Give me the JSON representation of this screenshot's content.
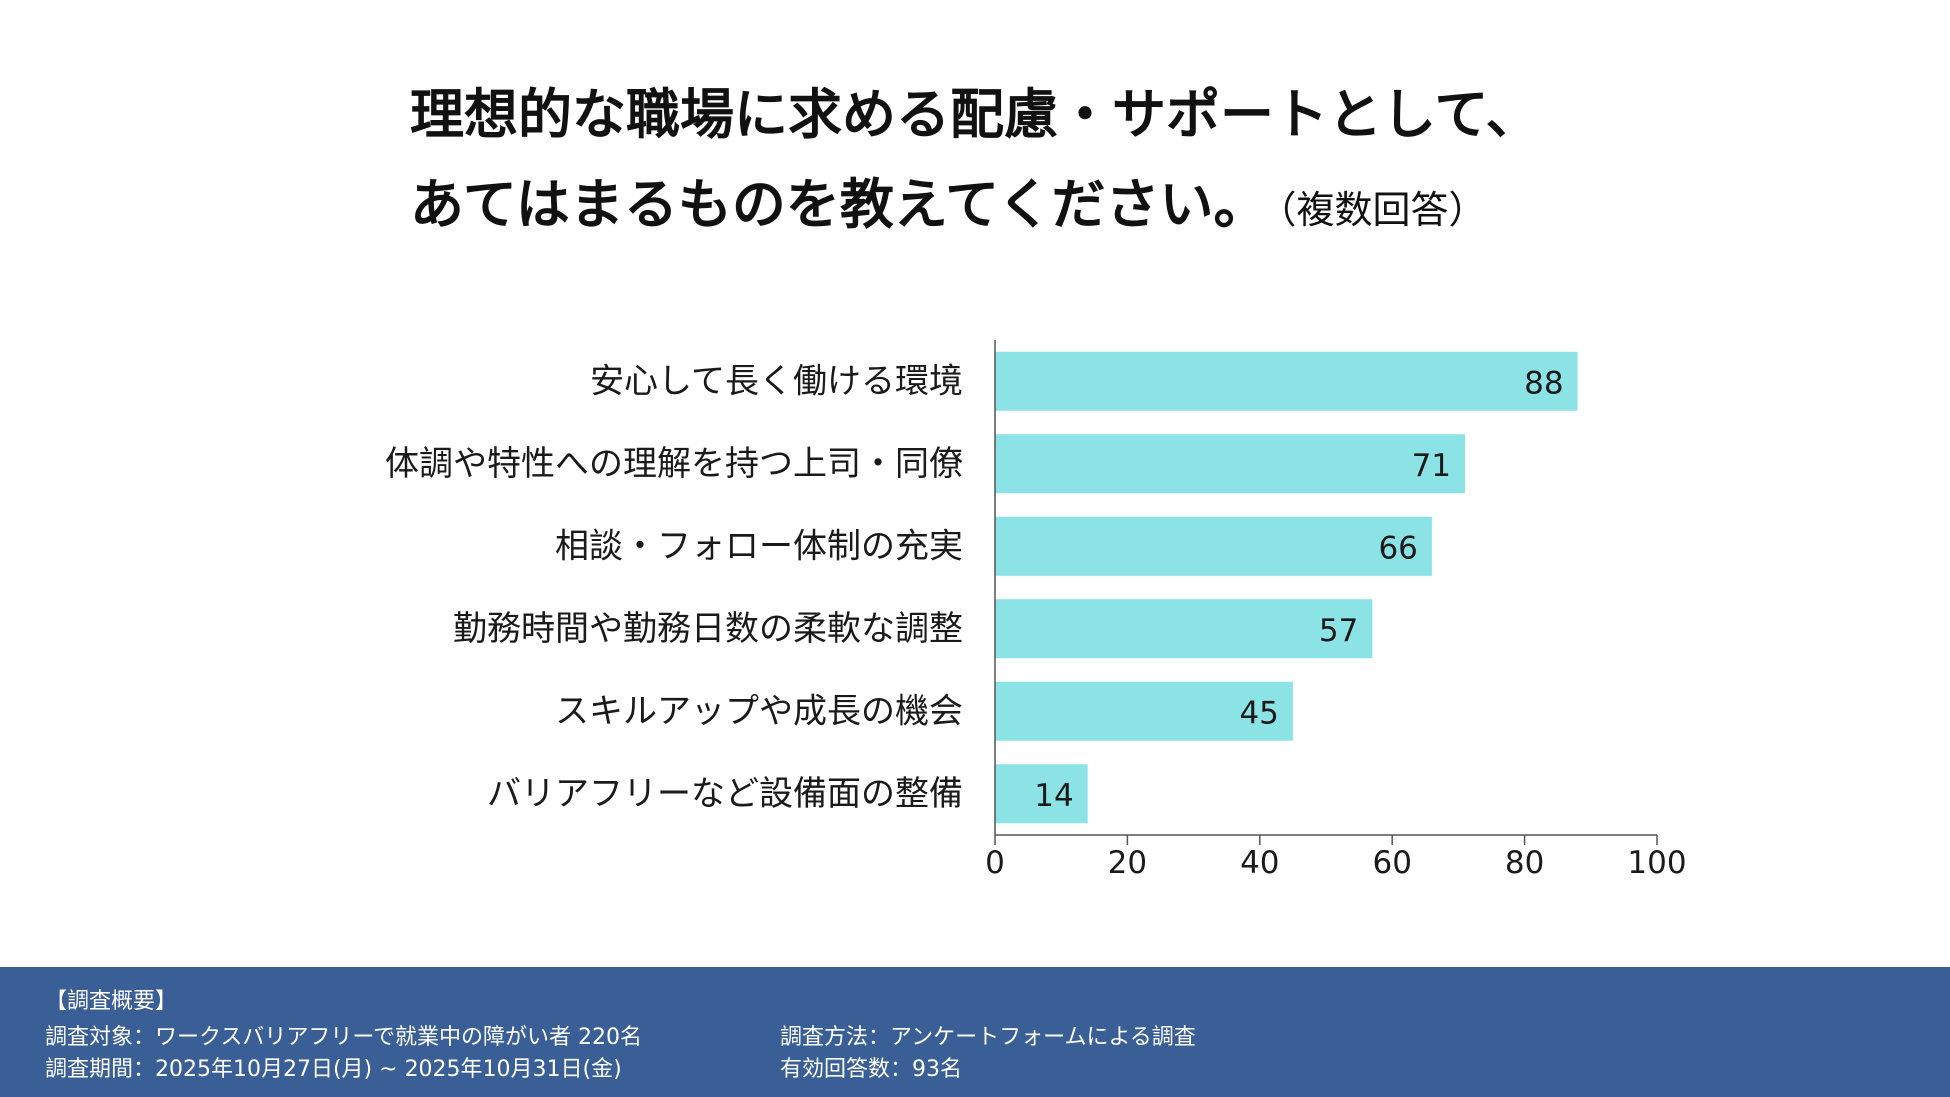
{
  "title_line1": "理想的な職場に求める配慮・サポートとして、",
  "title_line2": "あてはまるものを教えてください。",
  "title_note": "（複数回答）",
  "chart_data": {
    "type": "bar",
    "orientation": "horizontal",
    "categories": [
      "安心して長く働ける環境",
      "体調や特性への理解を持つ上司・同僚",
      "相談・フォロー体制の充実",
      "勤務時間や勤務日数の柔軟な調整",
      "スキルアップや成長の機会",
      "バリアフリーなど設備面の整備"
    ],
    "values": [
      88,
      71,
      66,
      57,
      45,
      14
    ],
    "xlim": [
      0,
      100
    ],
    "xticks": [
      0,
      20,
      40,
      60,
      80,
      100
    ],
    "bar_color": "#8ce3e6",
    "grid": false,
    "legend": "none"
  },
  "footer": {
    "heading": "【調査概要】",
    "target": "調査対象：ワークスバリアフリーで就業中の障がい者 220名",
    "period": "調査期間：2025年10月27日(月) ~ 2025年10月31日(金)",
    "method": "調査方法：アンケートフォームによる調査",
    "responses": "有効回答数：93名"
  },
  "colors": {
    "footer_bg": "#3a5f97",
    "bar": "#8ce3e6",
    "text": "#111111"
  }
}
